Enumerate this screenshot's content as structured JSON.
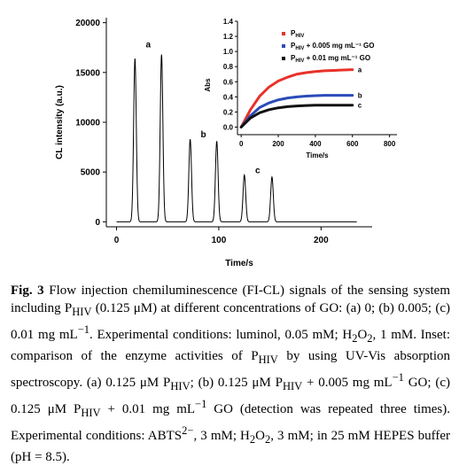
{
  "chart_data": [
    {
      "type": "line",
      "title": "",
      "xlabel": "Time/s",
      "ylabel": "CL intensity (a.u.)",
      "xlim": [
        -10,
        250
      ],
      "ylim": [
        -500,
        20500
      ],
      "xticks": [
        "0",
        "100",
        "200"
      ],
      "xtick_values": [
        0,
        100,
        200
      ],
      "yticks": [
        "0",
        "5000",
        "10000",
        "15000",
        "20000"
      ],
      "ytick_values": [
        0,
        5000,
        10000,
        15000,
        20000
      ],
      "baseline": 0,
      "peak_width_s": 1.3,
      "peaks": [
        {
          "x": 18,
          "y": 16400
        },
        {
          "x": 44,
          "y": 16800
        },
        {
          "x": 72,
          "y": 8300
        },
        {
          "x": 98,
          "y": 8100
        },
        {
          "x": 125,
          "y": 4700
        },
        {
          "x": 152,
          "y": 4500
        }
      ],
      "annotations": [
        {
          "text": "a",
          "x": 31,
          "y": 17500
        },
        {
          "text": "b",
          "x": 85,
          "y": 8500
        },
        {
          "text": "c",
          "x": 138,
          "y": 4900
        }
      ],
      "grid": false
    },
    {
      "type": "line",
      "title": "",
      "xlabel": "Time/s",
      "ylabel": "Abs",
      "xlim": [
        -20,
        840
      ],
      "ylim": [
        -0.1,
        1.4
      ],
      "xticks": [
        "0",
        "200",
        "400",
        "600",
        "800"
      ],
      "xtick_values": [
        0,
        200,
        400,
        600,
        800
      ],
      "yticks": [
        "0.0",
        "0.2",
        "0.4",
        "0.6",
        "0.8",
        "1.0",
        "1.2",
        "1.4"
      ],
      "ytick_values": [
        0.0,
        0.2,
        0.4,
        0.6,
        0.8,
        1.0,
        1.2,
        1.4
      ],
      "grid": false,
      "legend_position": "top-right",
      "series": [
        {
          "label": "a",
          "color": "#e8312a",
          "x": [
            0,
            50,
            100,
            150,
            200,
            250,
            300,
            350,
            400,
            450,
            500,
            550,
            600
          ],
          "values": [
            0.0,
            0.23,
            0.41,
            0.53,
            0.61,
            0.66,
            0.7,
            0.72,
            0.735,
            0.745,
            0.75,
            0.755,
            0.76
          ]
        },
        {
          "label": "b",
          "color": "#2a4bb8",
          "x": [
            0,
            50,
            100,
            150,
            200,
            250,
            300,
            350,
            400,
            450,
            500,
            550,
            600
          ],
          "values": [
            0.0,
            0.15,
            0.26,
            0.32,
            0.36,
            0.385,
            0.4,
            0.41,
            0.415,
            0.42,
            0.42,
            0.42,
            0.42
          ]
        },
        {
          "label": "c",
          "color": "#111111",
          "x": [
            0,
            50,
            100,
            150,
            200,
            250,
            300,
            350,
            400,
            450,
            500,
            550,
            600
          ],
          "values": [
            0.0,
            0.12,
            0.19,
            0.23,
            0.255,
            0.27,
            0.28,
            0.285,
            0.29,
            0.29,
            0.29,
            0.29,
            0.29
          ]
        }
      ],
      "legend_entries": [
        {
          "text": "P",
          "sub": "HIV",
          "tail": "",
          "color": "#e8312a"
        },
        {
          "text": "P",
          "sub": "HIV",
          "tail": " + 0.005 mg mL⁻¹ GO",
          "color": "#2a4bb8"
        },
        {
          "text": "P",
          "sub": "HIV",
          "tail": " + 0.01 mg mL⁻¹ GO",
          "color": "#111111"
        }
      ]
    }
  ],
  "caption": {
    "label": "Fig. 3",
    "p1": " Flow injection chemiluminescence (FI-CL) signals of the sensing system including P",
    "sub1": "HIV",
    "p2": " (0.125 μM) at different concentrations of GO: (a) 0; (b) 0.005; (c) 0.01 mg mL",
    "sup1": "−1",
    "p3": ". Experimental conditions: luminol, 0.05 mM; H",
    "sub2": "2",
    "p4": "O",
    "sub3": "2",
    "p5": ", 1 mM. Inset: comparison of the enzyme activities of P",
    "sub4": "HIV",
    "p6": " by using UV-Vis absorption spectroscopy. (a) 0.125 μM P",
    "sub5": "HIV",
    "p7": "; (b) 0.125 μM P",
    "sub6": "HIV",
    "p8": " + 0.005 mg mL",
    "sup2": "−1",
    "p9": " GO; (c) 0.125 μM P",
    "sub7": "HIV",
    "p10": " + 0.01 mg mL",
    "sup3": "−1",
    "p11": " GO (detection was repeated three times). Experimental conditions: ABTS",
    "sup4": "2−",
    "p12": ", 3 mM; H",
    "sub8": "2",
    "p13": "O",
    "sub9": "2",
    "p14": ", 3 mM; in 25 mM HEPES buffer (pH = 8.5)."
  }
}
